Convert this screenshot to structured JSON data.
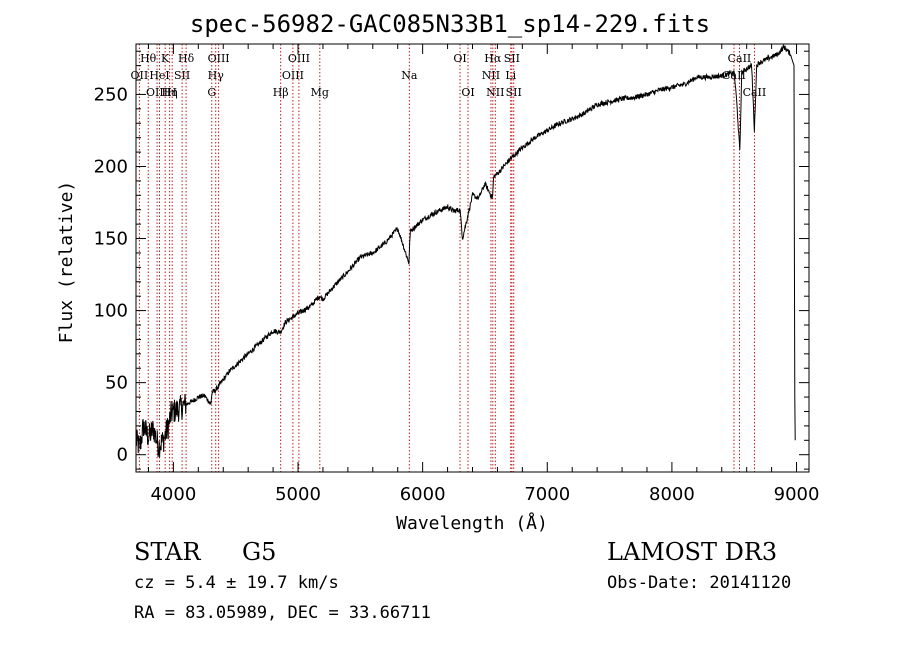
{
  "chart_data": {
    "type": "line",
    "title": "spec-56982-GAC085N33B1_sp14-229.fits",
    "xlabel": "Wavelength (Å)",
    "ylabel": "Flux (relative)",
    "xlim": [
      3700,
      9100
    ],
    "ylim": [
      -12,
      285
    ],
    "x_ticks": [
      4000,
      5000,
      6000,
      7000,
      8000,
      9000
    ],
    "y_ticks": [
      0,
      50,
      100,
      150,
      200,
      250
    ],
    "series": [
      {
        "name": "spectrum",
        "x": [
          3700,
          3730,
          3760,
          3800,
          3840,
          3880,
          3920,
          3960,
          3980,
          4000,
          4050,
          4100,
          4150,
          4200,
          4250,
          4300,
          4310,
          4340,
          4400,
          4450,
          4500,
          4600,
          4700,
          4800,
          4860,
          4900,
          5000,
          5100,
          5170,
          5200,
          5300,
          5400,
          5500,
          5600,
          5700,
          5800,
          5890,
          5900,
          6000,
          6100,
          6200,
          6250,
          6300,
          6320,
          6400,
          6450,
          6500,
          6560,
          6570,
          6600,
          6700,
          6800,
          6900,
          7000,
          7100,
          7200,
          7300,
          7400,
          7500,
          7600,
          7700,
          7800,
          7900,
          8000,
          8100,
          8200,
          8300,
          8400,
          8500,
          8520,
          8545,
          8560,
          8600,
          8640,
          8662,
          8680,
          8700,
          8750,
          8800,
          8850,
          8900,
          8950,
          8980,
          8985,
          8990
        ],
        "y": [
          10,
          5,
          20,
          12,
          18,
          6,
          10,
          20,
          28,
          30,
          32,
          35,
          37,
          40,
          41,
          35,
          43,
          45,
          52,
          58,
          62,
          70,
          78,
          86,
          85,
          92,
          98,
          103,
          110,
          108,
          118,
          127,
          137,
          140,
          147,
          157,
          133,
          155,
          163,
          168,
          172,
          169,
          170,
          150,
          180,
          178,
          188,
          178,
          193,
          195,
          205,
          213,
          220,
          225,
          230,
          233,
          237,
          243,
          245,
          247,
          248,
          250,
          253,
          255,
          257,
          262,
          262,
          263,
          265,
          245,
          210,
          265,
          268,
          270,
          225,
          270,
          272,
          274,
          276,
          278,
          283,
          278,
          270,
          50,
          0
        ]
      }
    ],
    "line_markers": [
      {
        "label": "OII",
        "x": 3727,
        "row": 2
      },
      {
        "label": "Hθ",
        "x": 3798,
        "row": 1
      },
      {
        "label": "OIII",
        "x": 3869,
        "row": 3
      },
      {
        "label": "HeI",
        "x": 3889,
        "row": 2
      },
      {
        "label": "K",
        "x": 3934,
        "row": 1
      },
      {
        "label": "Hη",
        "x": 3970,
        "row": 3
      },
      {
        "label": "H",
        "x": 3990,
        "row": 3
      },
      {
        "label": "SII",
        "x": 4070,
        "row": 2
      },
      {
        "label": "Hδ",
        "x": 4102,
        "row": 1
      },
      {
        "label": "OIII",
        "x": 4363,
        "row": 1
      },
      {
        "label": "Hγ",
        "x": 4340,
        "row": 2
      },
      {
        "label": "G",
        "x": 4308,
        "row": 3
      },
      {
        "label": "Hβ",
        "x": 4861,
        "row": 3
      },
      {
        "label": "OIII",
        "x": 4959,
        "row": 2
      },
      {
        "label": "OIII",
        "x": 5007,
        "row": 1
      },
      {
        "label": "Mg",
        "x": 5175,
        "row": 3
      },
      {
        "label": "Na",
        "x": 5893,
        "row": 2
      },
      {
        "label": "OI",
        "x": 6300,
        "row": 1
      },
      {
        "label": "OI",
        "x": 6364,
        "row": 3
      },
      {
        "label": "NII",
        "x": 6548,
        "row": 2
      },
      {
        "label": "Hα",
        "x": 6563,
        "row": 1
      },
      {
        "label": "NII",
        "x": 6583,
        "row": 3
      },
      {
        "label": "Li",
        "x": 6707,
        "row": 2
      },
      {
        "label": "SII",
        "x": 6716,
        "row": 1
      },
      {
        "label": "SII",
        "x": 6731,
        "row": 3
      },
      {
        "label": "CaII",
        "x": 8498,
        "row": 2
      },
      {
        "label": "CaII",
        "x": 8542,
        "row": 1
      },
      {
        "label": "CaII",
        "x": 8662,
        "row": 3
      }
    ]
  },
  "info": {
    "object_class": "STAR",
    "subclass": "G5",
    "survey": "LAMOST DR3",
    "redshift": "cz = 5.4 ± 19.7 km/s",
    "obs_date": "Obs-Date: 20141120",
    "coords": "RA =  83.05989, DEC =  33.66711"
  }
}
